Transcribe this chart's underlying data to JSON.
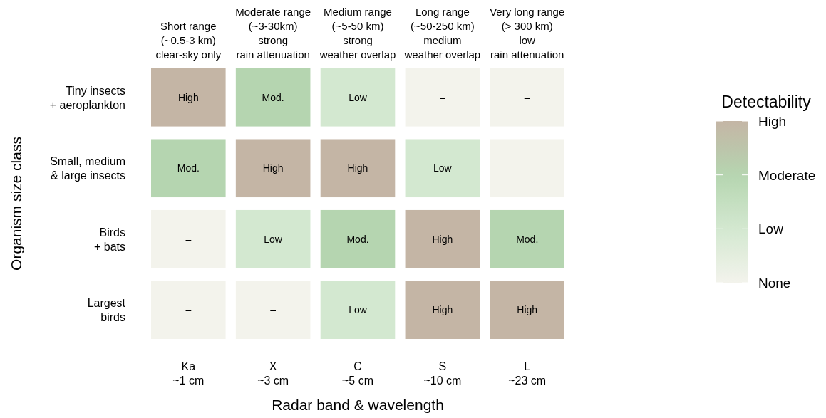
{
  "chart_data": {
    "type": "heatmap",
    "xlabel": "Radar band & wavelength",
    "ylabel": "Organism size class",
    "legend_title": "Detectability",
    "categories": [
      "Ka\n~1 cm",
      "X\n~3 cm",
      "C\n~5 cm",
      "S\n~10 cm",
      "L\n~23 cm"
    ],
    "y_categories": [
      "Tiny insects\n+ aeroplankton",
      "Small, medium\n& large insects",
      "Birds\n+ bats",
      "Largest\nbirds"
    ],
    "annotations": [
      "Short range\n(~0.5-3 km)\nclear-sky only",
      "Moderate range\n(~3-30km)\nstrong\nrain attenuation",
      "Medium range\n(~5-50 km)\nstrong\nweather overlap",
      "Long range\n(~50-250 km)\nmedium\nweather overlap",
      "Very long range\n(> 300 km)\nlow\nrain attenuation"
    ],
    "cells": [
      [
        3,
        2,
        1,
        0,
        0
      ],
      [
        2,
        3,
        3,
        1,
        0
      ],
      [
        0,
        1,
        2,
        3,
        2
      ],
      [
        0,
        0,
        1,
        3,
        3
      ]
    ],
    "cell_labels": [
      [
        "High",
        "Mod.",
        "Low",
        "–",
        "–"
      ],
      [
        "Mod.",
        "High",
        "High",
        "Low",
        "–"
      ],
      [
        "–",
        "Low",
        "Mod.",
        "High",
        "Mod."
      ],
      [
        "–",
        "–",
        "Low",
        "High",
        "High"
      ]
    ],
    "colors": [
      "#f3f3ec",
      "#d3e8d0",
      "#b5d5b0",
      "#c4b5a5"
    ],
    "clim": [
      0,
      3
    ],
    "cticks": [
      {
        "value": 0,
        "label": "None"
      },
      {
        "value": 1,
        "label": "Low"
      },
      {
        "value": 2,
        "label": "Moderate"
      },
      {
        "value": 3,
        "label": "High"
      }
    ]
  }
}
